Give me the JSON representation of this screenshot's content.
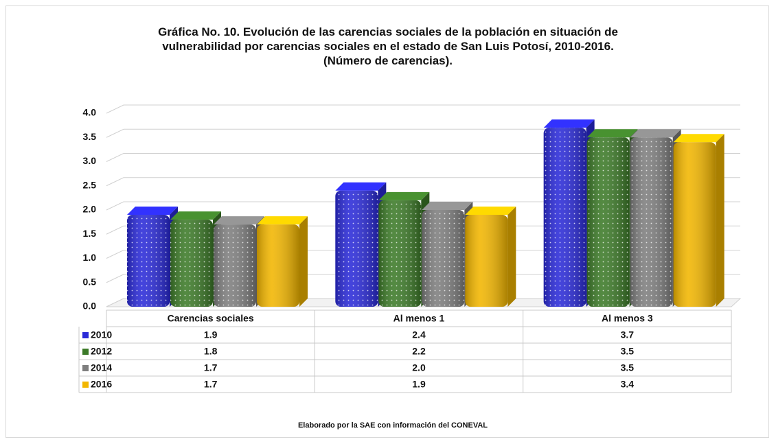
{
  "chart_data": {
    "type": "bar3d",
    "title": "Gráfica No. 10. Evolución de las carencias sociales de la población en situación de vulnerabilidad por carencias sociales en el estado de San Luis Potosí, 2010-2016. (Número de carencias).",
    "categories": [
      "Carencias sociales",
      "Al menos 1",
      "Al menos 3"
    ],
    "series": [
      {
        "name": "2010",
        "color": "#2a2ad8",
        "values": [
          1.9,
          2.4,
          3.7
        ],
        "value_labels": [
          "1.9",
          "2.4",
          "3.7"
        ]
      },
      {
        "name": "2012",
        "color": "#3c7a28",
        "values": [
          1.8,
          2.2,
          3.5
        ],
        "value_labels": [
          "1.8",
          "2.2",
          "3.5"
        ]
      },
      {
        "name": "2014",
        "color": "#7e7e7e",
        "values": [
          1.7,
          2.0,
          3.5
        ],
        "value_labels": [
          "1.7",
          "2.0",
          "3.5"
        ]
      },
      {
        "name": "2016",
        "color": "#f2b600",
        "values": [
          1.7,
          1.9,
          3.4
        ],
        "value_labels": [
          "1.7",
          "1.9",
          "3.4"
        ]
      }
    ],
    "ylim": [
      0,
      4
    ],
    "yticks": [
      {
        "value": 0,
        "label": "0.0"
      },
      0.5,
      {
        "value": 1,
        "label": "1.0"
      },
      1.5,
      {
        "value": 2,
        "label": "2.0"
      },
      2.5,
      {
        "value": 3,
        "label": "3.0"
      },
      3.5,
      {
        "value": 4,
        "label": "4.0"
      }
    ],
    "grid": true,
    "note": "Elaborado por la SAE con información del CONEVAL"
  }
}
